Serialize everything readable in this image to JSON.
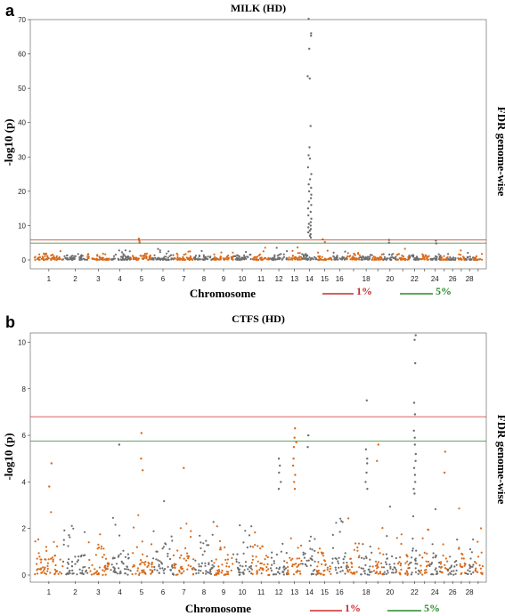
{
  "chart_data": [
    {
      "panel": "a",
      "type": "scatter",
      "title": "MILK (HD)",
      "xlabel": "Chromosome",
      "ylabel": "-log10 (p)",
      "right_label": "FDR genome-wise",
      "ylim": [
        0,
        70
      ],
      "yticks": [
        "0",
        "10",
        "20",
        "30",
        "40",
        "50",
        "60",
        "70"
      ],
      "xtick_labels": [
        "1",
        "2",
        "3",
        "4",
        "5",
        "6",
        "7",
        "8",
        "9",
        "10",
        "11",
        "12",
        "13",
        "14",
        "15",
        "16",
        "18",
        "20",
        "22",
        "24",
        "26",
        "28"
      ],
      "chromosomes": 29,
      "colors": {
        "odd": "#d86a1a",
        "even": "#6d6d6d"
      },
      "thresholds": [
        {
          "label": "1%",
          "value": 5.8,
          "color": "#cc2a2a"
        },
        {
          "label": "5%",
          "value": 4.9,
          "color": "#2a8a2a"
        }
      ],
      "background_max": 3.2,
      "peaks": [
        {
          "chromosome": 14,
          "values": [
            70.2,
            66.0,
            65.3,
            61.5,
            53.5,
            52.8,
            39.0,
            32.8,
            30.5,
            29.5,
            27.0,
            25.0,
            23.5,
            22.0,
            21.0,
            20.0,
            19.0,
            18.0,
            17.0,
            16.0,
            15.0,
            14.0,
            13.0,
            12.0,
            11.0,
            10.5,
            10.0,
            9.5,
            9.0,
            8.5,
            8.0,
            7.5,
            7.0,
            6.5
          ]
        },
        {
          "chromosome": 5,
          "values": [
            6.2,
            5.5,
            5.0
          ]
        },
        {
          "chromosome": 15,
          "values": [
            6.0,
            5.2
          ]
        },
        {
          "chromosome": 20,
          "values": [
            5.8,
            5.0
          ]
        },
        {
          "chromosome": 24,
          "values": [
            5.6,
            4.8
          ]
        }
      ]
    },
    {
      "panel": "b",
      "type": "scatter",
      "title": "CTFS (HD)",
      "xlabel": "Chromosome",
      "ylabel": "-log10 (p)",
      "right_label": "FDR genome-wise",
      "ylim": [
        0,
        10.4
      ],
      "yticks": [
        "0",
        "2",
        "4",
        "6",
        "8",
        "10"
      ],
      "xtick_labels": [
        "1",
        "2",
        "3",
        "4",
        "5",
        "6",
        "7",
        "8",
        "9",
        "10",
        "11",
        "12",
        "13",
        "14",
        "15",
        "16",
        "18",
        "20",
        "22",
        "24",
        "26",
        "28"
      ],
      "chromosomes": 29,
      "colors": {
        "odd": "#d86a1a",
        "even": "#6d6d6d"
      },
      "thresholds": [
        {
          "label": "1%",
          "value": 6.8,
          "color": "#cc2a2a"
        },
        {
          "label": "5%",
          "value": 5.75,
          "color": "#2a8a2a"
        }
      ],
      "background_max": 2.9,
      "peaks": [
        {
          "chromosome": 22,
          "values": [
            10.3,
            10.1,
            9.1,
            7.4,
            6.9,
            6.2,
            5.9,
            5.6,
            5.2,
            4.9,
            4.6,
            4.3,
            4.0,
            3.7,
            3.5
          ]
        },
        {
          "chromosome": 18,
          "values": [
            7.5,
            5.4,
            5.0,
            4.8,
            4.4,
            4.0,
            3.7
          ]
        },
        {
          "chromosome": 13,
          "values": [
            6.3,
            5.9,
            5.7,
            5.5,
            5.0,
            4.7,
            4.3,
            4.0,
            3.7
          ]
        },
        {
          "chromosome": 14,
          "values": [
            6.0,
            5.5
          ]
        },
        {
          "chromosome": 12,
          "values": [
            5.0,
            4.7,
            4.4,
            4.0,
            3.7
          ]
        },
        {
          "chromosome": 5,
          "values": [
            6.1,
            5.0,
            4.5
          ]
        },
        {
          "chromosome": 4,
          "values": [
            5.6
          ]
        },
        {
          "chromosome": 19,
          "values": [
            5.6,
            4.9
          ]
        },
        {
          "chromosome": 1,
          "values": [
            4.8,
            3.8
          ]
        },
        {
          "chromosome": 7,
          "values": [
            4.6
          ]
        },
        {
          "chromosome": 25,
          "values": [
            5.3,
            4.4
          ]
        }
      ]
    }
  ]
}
